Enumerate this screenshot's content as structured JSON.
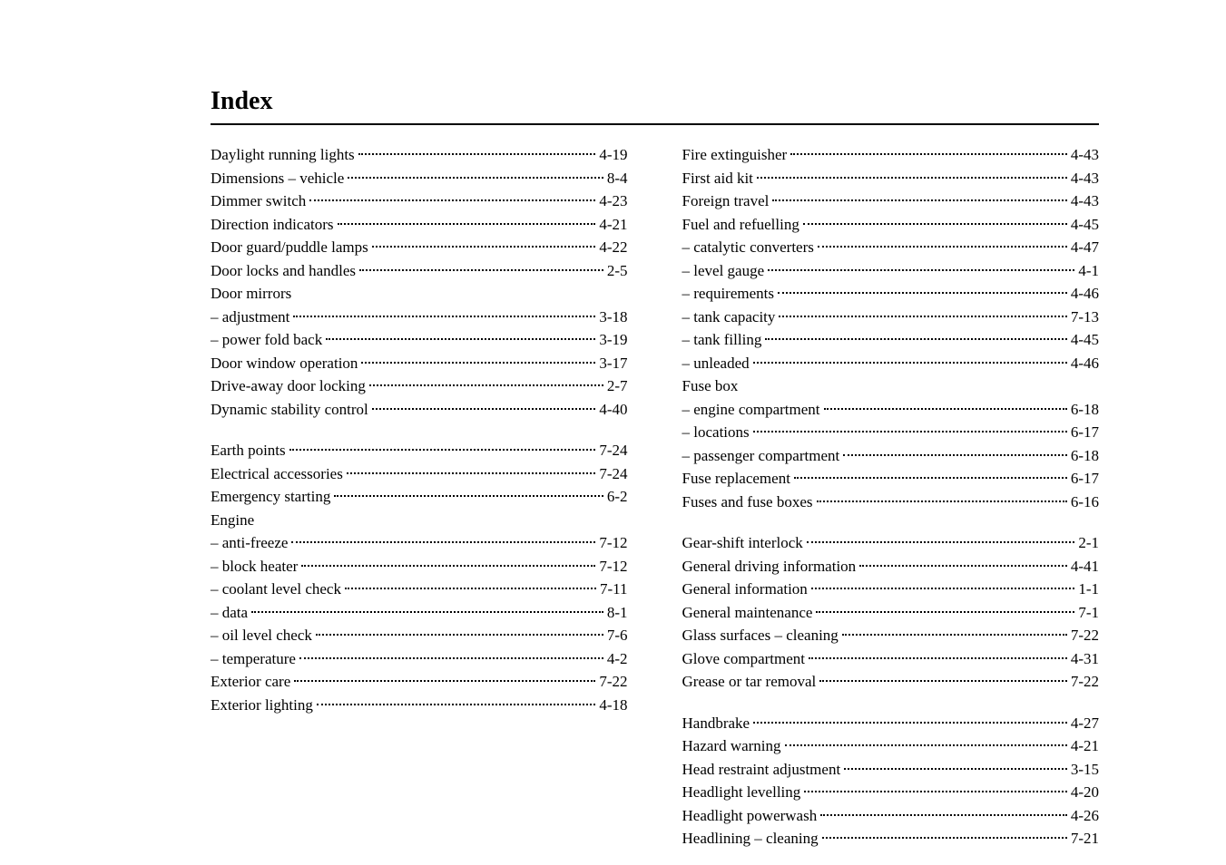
{
  "title": "Index",
  "left_column": {
    "groups": [
      {
        "entries": [
          {
            "label": "Daylight running lights",
            "page": "4-19"
          },
          {
            "label": "Dimensions – vehicle",
            "page": "8-4"
          },
          {
            "label": "Dimmer switch",
            "page": "4-23"
          },
          {
            "label": "Direction indicators",
            "page": "4-21"
          },
          {
            "label": "Door guard/puddle lamps",
            "page": "4-22"
          },
          {
            "label": "Door locks and handles",
            "page": "2-5"
          },
          {
            "label": "Door mirrors",
            "page": ""
          },
          {
            "label": "– adjustment",
            "page": "3-18"
          },
          {
            "label": "– power fold back",
            "page": "3-19"
          },
          {
            "label": "Door window operation",
            "page": "3-17"
          },
          {
            "label": "Drive-away door locking",
            "page": "2-7"
          },
          {
            "label": "Dynamic stability control",
            "page": "4-40"
          }
        ]
      },
      {
        "entries": [
          {
            "label": "Earth points",
            "page": "7-24"
          },
          {
            "label": "Electrical accessories",
            "page": "7-24"
          },
          {
            "label": "Emergency starting",
            "page": "6-2"
          },
          {
            "label": "Engine",
            "page": ""
          },
          {
            "label": "– anti-freeze",
            "page": "7-12"
          },
          {
            "label": "– block heater",
            "page": "7-12"
          },
          {
            "label": "– coolant level check",
            "page": "7-11"
          },
          {
            "label": "– data",
            "page": "8-1"
          },
          {
            "label": "– oil level check",
            "page": "7-6"
          },
          {
            "label": "– temperature",
            "page": "4-2"
          },
          {
            "label": "Exterior care",
            "page": "7-22"
          },
          {
            "label": "Exterior lighting",
            "page": "4-18"
          }
        ]
      }
    ]
  },
  "right_column": {
    "groups": [
      {
        "entries": [
          {
            "label": "Fire extinguisher",
            "page": "4-43"
          },
          {
            "label": "First aid kit",
            "page": "4-43"
          },
          {
            "label": "Foreign travel",
            "page": "4-43"
          },
          {
            "label": "Fuel and refuelling",
            "page": "4-45"
          },
          {
            "label": "– catalytic converters",
            "page": "4-47"
          },
          {
            "label": "– level gauge",
            "page": "4-1"
          },
          {
            "label": "– requirements",
            "page": "4-46"
          },
          {
            "label": "– tank capacity",
            "page": "7-13"
          },
          {
            "label": "– tank filling",
            "page": "4-45"
          },
          {
            "label": "– unleaded",
            "page": "4-46"
          },
          {
            "label": "Fuse box",
            "page": ""
          },
          {
            "label": "– engine compartment",
            "page": "6-18"
          },
          {
            "label": "– locations",
            "page": "6-17"
          },
          {
            "label": "– passenger compartment",
            "page": "6-18"
          },
          {
            "label": "Fuse replacement",
            "page": "6-17"
          },
          {
            "label": "Fuses and fuse boxes",
            "page": "6-16"
          }
        ]
      },
      {
        "entries": [
          {
            "label": "Gear-shift interlock",
            "page": "2-1"
          },
          {
            "label": "General driving information",
            "page": "4-41"
          },
          {
            "label": "General information",
            "page": "1-1"
          },
          {
            "label": "General maintenance",
            "page": "7-1"
          },
          {
            "label": "Glass surfaces – cleaning",
            "page": "7-22"
          },
          {
            "label": "Glove compartment",
            "page": "4-31"
          },
          {
            "label": "Grease or tar removal",
            "page": "7-22"
          }
        ]
      },
      {
        "entries": [
          {
            "label": "Handbrake",
            "page": "4-27"
          },
          {
            "label": "Hazard warning",
            "page": "4-21"
          },
          {
            "label": "Head restraint adjustment",
            "page": "3-15"
          },
          {
            "label": "Headlight levelling",
            "page": "4-20"
          },
          {
            "label": "Headlight powerwash",
            "page": "4-26"
          },
          {
            "label": "Headlining – cleaning",
            "page": "7-21"
          }
        ]
      }
    ]
  }
}
